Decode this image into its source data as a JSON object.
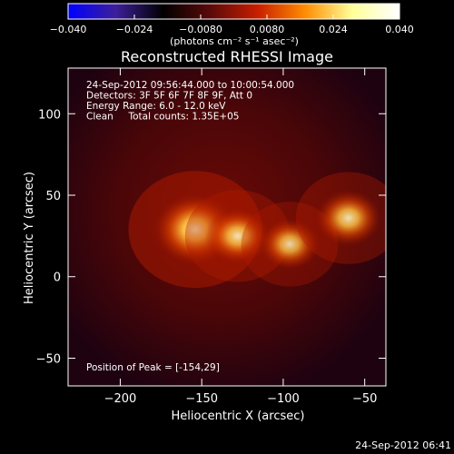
{
  "chart_data": {
    "type": "heatmap",
    "title": "Reconstructed RHESSI Image",
    "xlabel": "Heliocentric X (arcsec)",
    "ylabel": "Heliocentric Y (arcsec)",
    "xlim": [
      -232,
      -37
    ],
    "ylim": [
      -67,
      128
    ],
    "x_ticks": [
      -200,
      -150,
      -100,
      -50
    ],
    "x_tick_labels": [
      "−200",
      "−150",
      "−100",
      "−50"
    ],
    "y_ticks": [
      -50,
      0,
      50,
      100
    ],
    "y_tick_labels": [
      "−50",
      "0",
      "50",
      "100"
    ],
    "colorbar": {
      "range": [
        -0.04,
        0.04
      ],
      "ticks": [
        -0.04,
        -0.024,
        -0.008,
        0.008,
        0.024,
        0.04
      ],
      "tick_labels": [
        "−0.040",
        "−0.024",
        "−0.0080",
        "0.0080",
        "0.024",
        "0.040"
      ],
      "unit_label": "(photons cm⁻² s⁻¹ asec⁻²)",
      "colors": [
        "#0000ff",
        "#3d1f9a",
        "#000000",
        "#5a0a0a",
        "#c81e00",
        "#ff8c00",
        "#ffff9a",
        "#ffffff"
      ]
    },
    "annotations": [
      "24-Sep-2012 09:56:44.000 to 10:00:54.000",
      "Detectors: 3F 5F 6F 7F 8F 9F, Att 0",
      "Energy Range: 6.0 - 12.0 keV",
      "Clean     Total counts: 1.35E+05"
    ],
    "peak_label": "Position of Peak = [-154,29]",
    "sources": [
      {
        "x": -154,
        "y": 29,
        "intensity": 0.04
      },
      {
        "x": -128,
        "y": 25,
        "intensity": 0.026
      },
      {
        "x": -96,
        "y": 20,
        "intensity": 0.022
      },
      {
        "x": -60,
        "y": 36,
        "intensity": 0.026
      }
    ]
  },
  "footer": {
    "timestamp": "24-Sep-2012 06:41"
  }
}
